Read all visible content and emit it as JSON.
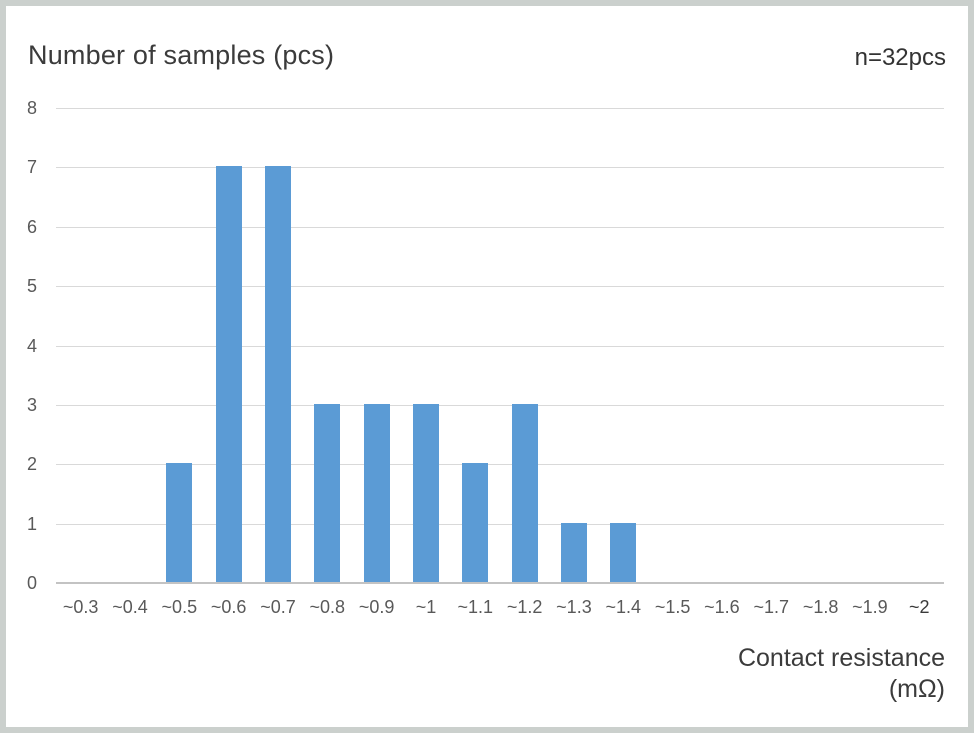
{
  "header": {
    "title": "Number of samples (pcs)",
    "sample_count": "n=32pcs"
  },
  "chart_data": {
    "type": "bar",
    "title": "Number of samples (pcs)",
    "categories": [
      "~0.3",
      "~0.4",
      "~0.5",
      "~0.6",
      "~0.7",
      "~0.8",
      "~0.9",
      "~1",
      "~1.1",
      "~1.2",
      "~1.3",
      "~1.4",
      "~1.5",
      "~1.6",
      "~1.7",
      "~1.8",
      "~1.9",
      "~2"
    ],
    "values": [
      0,
      0,
      2,
      7,
      7,
      3,
      3,
      3,
      2,
      3,
      1,
      1,
      0,
      0,
      0,
      0,
      0,
      0
    ],
    "xlabel": "Contact resistance (mΩ)",
    "ylabel": "Number of samples (pcs)",
    "annotation": "n=32pcs",
    "ylim": [
      0,
      8
    ],
    "yticks": [
      0,
      1,
      2,
      3,
      4,
      5,
      6,
      7,
      8
    ],
    "grid": true,
    "legend": false,
    "bar_color": "#5B9BD5",
    "gridline_color": "#d9d9d9",
    "axis_line_color": "#c3c3c3",
    "tick_label_color": "#595959"
  },
  "footer": {
    "xaxis_label_line1": "Contact resistance",
    "xaxis_label_line2": "(mΩ)"
  }
}
